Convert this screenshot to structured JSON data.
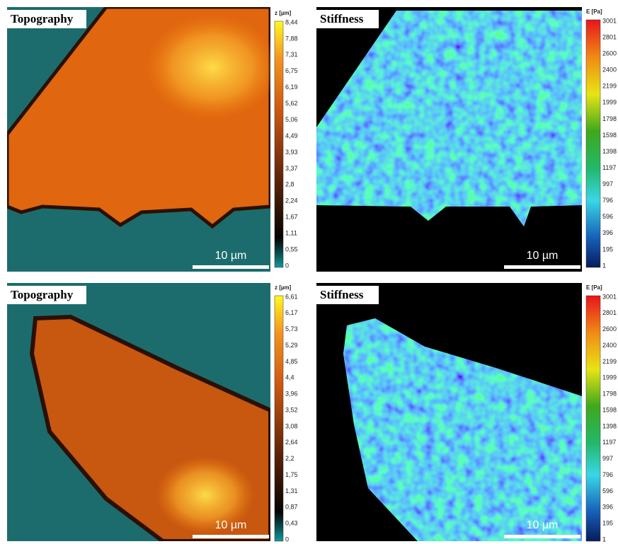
{
  "panels": [
    {
      "label": "Topography",
      "scale_bar": "10 µm",
      "colorbar": {
        "unit": "z [µm]",
        "ticks": [
          "8,44",
          "7,88",
          "7,31",
          "6,75",
          "6,19",
          "5,62",
          "5,06",
          "4,49",
          "3,93",
          "3,37",
          "2,8",
          "2,24",
          "1,67",
          "1,11",
          "0,55",
          "0"
        ]
      }
    },
    {
      "label": "Stiffness",
      "scale_bar": "10 µm",
      "colorbar": {
        "unit": "E [Pa]",
        "ticks": [
          "3001",
          "2801",
          "2600",
          "2400",
          "2199",
          "1999",
          "1798",
          "1598",
          "1398",
          "1197",
          "997",
          "796",
          "596",
          "396",
          "195",
          "1"
        ]
      }
    },
    {
      "label": "Topography",
      "scale_bar": "10 µm",
      "colorbar": {
        "unit": "z [µm]",
        "ticks": [
          "6,61",
          "6,17",
          "5,73",
          "5,29",
          "4,85",
          "4,4",
          "3,96",
          "3,52",
          "3,08",
          "2,64",
          "2,2",
          "1,75",
          "1,31",
          "0,87",
          "0,43",
          "0"
        ]
      }
    },
    {
      "label": "Stiffness",
      "scale_bar": "10 µm",
      "colorbar": {
        "unit": "E [Pa]",
        "ticks": [
          "3001",
          "2801",
          "2600",
          "2400",
          "2199",
          "1999",
          "1798",
          "1598",
          "1398",
          "1197",
          "997",
          "796",
          "596",
          "396",
          "195",
          "1"
        ]
      }
    }
  ]
}
